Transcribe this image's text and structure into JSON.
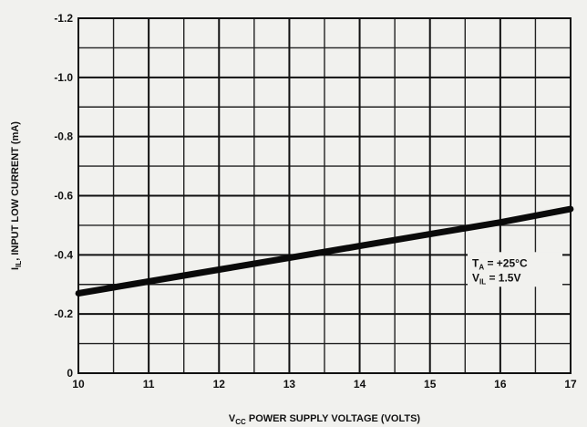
{
  "chart_data": {
    "type": "line",
    "xlabel": {
      "symbol": "V",
      "subscript": "CC",
      "text": " POWER SUPPLY VOLTAGE (VOLTS)"
    },
    "ylabel": {
      "symbol": "I",
      "subscript": "IL",
      "text": ", INPUT LOW CURRENT (mA)"
    },
    "xlim": [
      10,
      17
    ],
    "ylim": [
      0,
      -1.2
    ],
    "x_ticks": [
      10,
      11,
      12,
      13,
      14,
      15,
      16,
      17
    ],
    "x_tick_labels": [
      "10",
      "11",
      "12",
      "13",
      "14",
      "15",
      "16",
      "17"
    ],
    "y_ticks": [
      -1.2,
      -1.0,
      -0.8,
      -0.6,
      -0.4,
      -0.2,
      0
    ],
    "y_tick_labels": [
      "-1.2",
      "-1.0",
      "-0.8",
      "-0.6",
      "-0.4",
      "-0.2",
      "0"
    ],
    "grid": true,
    "minor_grid": {
      "x_step": 0.5,
      "y_step": 0.1
    },
    "series": [
      {
        "x": [
          10,
          11,
          12,
          13,
          14,
          15,
          16,
          17
        ],
        "y": [
          -0.27,
          -0.31,
          -0.35,
          -0.39,
          -0.43,
          -0.47,
          -0.51,
          -0.555
        ],
        "color": "#0a0a0a"
      }
    ],
    "annotations": [
      {
        "line1": {
          "symbol": "T",
          "subscript": "A",
          "text": " = +25°C"
        },
        "line2": {
          "symbol": "V",
          "subscript": "IL",
          "text": " = 1.5V"
        },
        "x": 15.6,
        "y": -0.36
      }
    ]
  }
}
